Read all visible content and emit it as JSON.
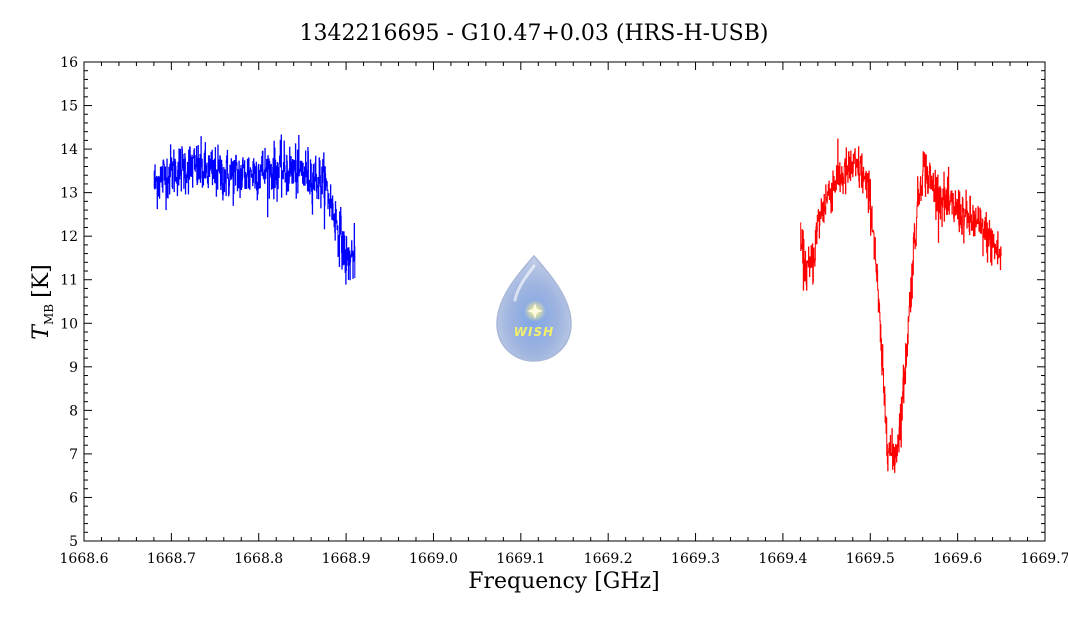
{
  "chart_data": {
    "type": "line",
    "title": "1342216695 - G10.47+0.03 (HRS-H-USB)",
    "xlabel": "Frequency [GHz]",
    "ylabel_main": "T",
    "ylabel_sub": "MB",
    "ylabel_unit": "[K]",
    "xlim": [
      1668.6,
      1669.7
    ],
    "ylim": [
      5,
      16
    ],
    "x_ticks": [
      "1668.6",
      "1668.7",
      "1668.8",
      "1668.9",
      "1669.0",
      "1669.1",
      "1669.2",
      "1669.3",
      "1669.4",
      "1669.5",
      "1669.6",
      "1669.7"
    ],
    "y_ticks": [
      "5",
      "6",
      "7",
      "8",
      "9",
      "10",
      "11",
      "12",
      "13",
      "14",
      "15",
      "16"
    ],
    "logo_text": "WISH",
    "series": [
      {
        "color": "#0000ff",
        "x_start": 1668.68,
        "x_end": 1668.91,
        "envelope": [
          [
            1668.68,
            13.2
          ],
          [
            1668.7,
            13.5
          ],
          [
            1668.72,
            13.6
          ],
          [
            1668.74,
            13.5
          ],
          [
            1668.76,
            13.4
          ],
          [
            1668.78,
            13.4
          ],
          [
            1668.8,
            13.5
          ],
          [
            1668.82,
            13.5
          ],
          [
            1668.84,
            13.5
          ],
          [
            1668.86,
            13.4
          ],
          [
            1668.875,
            13.2
          ],
          [
            1668.885,
            12.6
          ],
          [
            1668.895,
            11.9
          ],
          [
            1668.9,
            11.4
          ],
          [
            1668.905,
            11.5
          ],
          [
            1668.91,
            11.6
          ]
        ],
        "noise": 0.55
      },
      {
        "color": "#ff0000",
        "x_start": 1669.42,
        "x_end": 1669.65,
        "envelope": [
          [
            1669.42,
            11.8
          ],
          [
            1669.425,
            11.3
          ],
          [
            1669.43,
            11.2
          ],
          [
            1669.435,
            11.5
          ],
          [
            1669.44,
            12.3
          ],
          [
            1669.45,
            12.9
          ],
          [
            1669.46,
            13.3
          ],
          [
            1669.47,
            13.4
          ],
          [
            1669.48,
            13.6
          ],
          [
            1669.49,
            13.5
          ],
          [
            1669.5,
            12.8
          ],
          [
            1669.505,
            11.8
          ],
          [
            1669.51,
            10.2
          ],
          [
            1669.515,
            8.5
          ],
          [
            1669.52,
            7.3
          ],
          [
            1669.525,
            6.9
          ],
          [
            1669.53,
            7.1
          ],
          [
            1669.535,
            7.9
          ],
          [
            1669.54,
            9.0
          ],
          [
            1669.545,
            10.4
          ],
          [
            1669.55,
            11.8
          ],
          [
            1669.555,
            12.9
          ],
          [
            1669.56,
            13.6
          ],
          [
            1669.57,
            13.2
          ],
          [
            1669.58,
            12.9
          ],
          [
            1669.59,
            12.7
          ],
          [
            1669.6,
            12.6
          ],
          [
            1669.61,
            12.4
          ],
          [
            1669.62,
            12.3
          ],
          [
            1669.63,
            12.1
          ],
          [
            1669.64,
            11.8
          ],
          [
            1669.65,
            11.5
          ]
        ],
        "noise": 0.5
      }
    ]
  }
}
